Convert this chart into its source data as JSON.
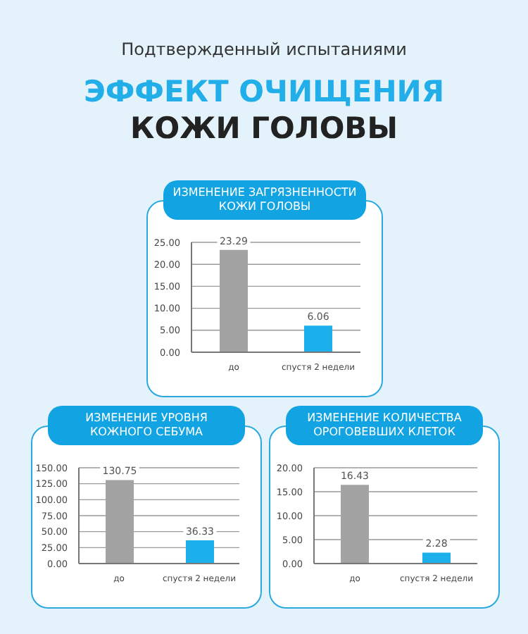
{
  "chart_data": [
    {
      "type": "bar",
      "title": "ИЗМЕНЕНИЕ ЗАГРЯЗНЕННОСТИ КОЖИ ГОЛОВЫ",
      "annotations": [
        "Подтвержденный испытаниями",
        "ЭФФЕКТ ОЧИЩЕНИЯ",
        "КОЖИ ГОЛОВЫ"
      ],
      "categories": [
        "до",
        "спустя 2 недели"
      ],
      "values": [
        23.29,
        6.06
      ],
      "colors": [
        "#a3a3a3",
        "#1bb0ec"
      ],
      "ylim": [
        0,
        25
      ],
      "yticks": [
        {
          "value": 0,
          "label": "0.00"
        },
        {
          "value": 5,
          "label": "5.00"
        },
        {
          "value": 10,
          "label": "10.00"
        },
        {
          "value": 15,
          "label": "15.00"
        },
        {
          "value": 20,
          "label": "20.00"
        },
        {
          "value": 25,
          "label": "25.00"
        }
      ],
      "grid": "y",
      "data_labels": true
    },
    {
      "type": "bar",
      "title": "ИЗМЕНЕНИЕ УРОВНЯ КОЖНОГО СЕБУМА",
      "categories": [
        "до",
        "спустя 2 недели"
      ],
      "values": [
        130.75,
        36.33
      ],
      "colors": [
        "#a3a3a3",
        "#1bb0ec"
      ],
      "ylim": [
        0,
        150
      ],
      "yticks": [
        {
          "value": 0,
          "label": "0.00"
        },
        {
          "value": 25,
          "label": "25.00"
        },
        {
          "value": 50,
          "label": "50.00"
        },
        {
          "value": 75,
          "label": "75.00"
        },
        {
          "value": 100,
          "label": "100.00"
        },
        {
          "value": 125,
          "label": "125.00"
        },
        {
          "value": 150,
          "label": "150.00"
        }
      ],
      "grid": "y",
      "data_labels": true
    },
    {
      "type": "bar",
      "title": "ИЗМЕНЕНИЕ КОЛИЧЕСТВА ОРОГОВЕВШИХ КЛЕТОК",
      "categories": [
        "до",
        "спустя 2 недели"
      ],
      "values": [
        16.43,
        2.28
      ],
      "colors": [
        "#a3a3a3",
        "#1bb0ec"
      ],
      "ylim": [
        0,
        20
      ],
      "yticks": [
        {
          "value": 0,
          "label": "0.00"
        },
        {
          "value": 5,
          "label": "5.00"
        },
        {
          "value": 10,
          "label": "10.00"
        },
        {
          "value": 15,
          "label": "15.00"
        },
        {
          "value": 20,
          "label": "20.00"
        }
      ],
      "grid": "y",
      "data_labels": true
    }
  ]
}
